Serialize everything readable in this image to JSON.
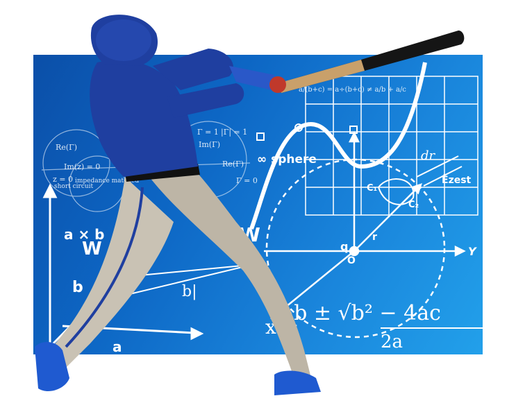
{
  "formulas": {
    "quadratic_numerator": "−b ± √b² − 4ac",
    "quadratic_denominator": "2a",
    "x_equals": "x =",
    "fraction_identity": "a/(b+c) = a÷(b+c) ≠ a/b + a/c",
    "infinity_sphere": "∞ sphere",
    "axb": "a × b",
    "w_left": "W",
    "w_right": "W",
    "b_label": "b",
    "a_label": "a",
    "bar_b": "b|",
    "dr": "dr",
    "ezest": "Ēzest",
    "q": "q",
    "o": "O",
    "y": "Y",
    "r": "r",
    "c1": "C₁",
    "c2": "C₂",
    "smith_labels": [
      "Re(Γ)",
      "Im(z) = 0",
      "Im(Γ)",
      "Re(Γ)",
      "|Γ| = 1",
      "Γ = 1",
      "z = 0",
      "short circuit",
      "impedance matched",
      "Γ = 0"
    ]
  },
  "colors": {
    "panel_dark": "#0b4fa8",
    "panel_light": "#22a0ea",
    "jersey": "#1f3fa0",
    "pants": "#c9c2b4",
    "bat": "#151515"
  }
}
